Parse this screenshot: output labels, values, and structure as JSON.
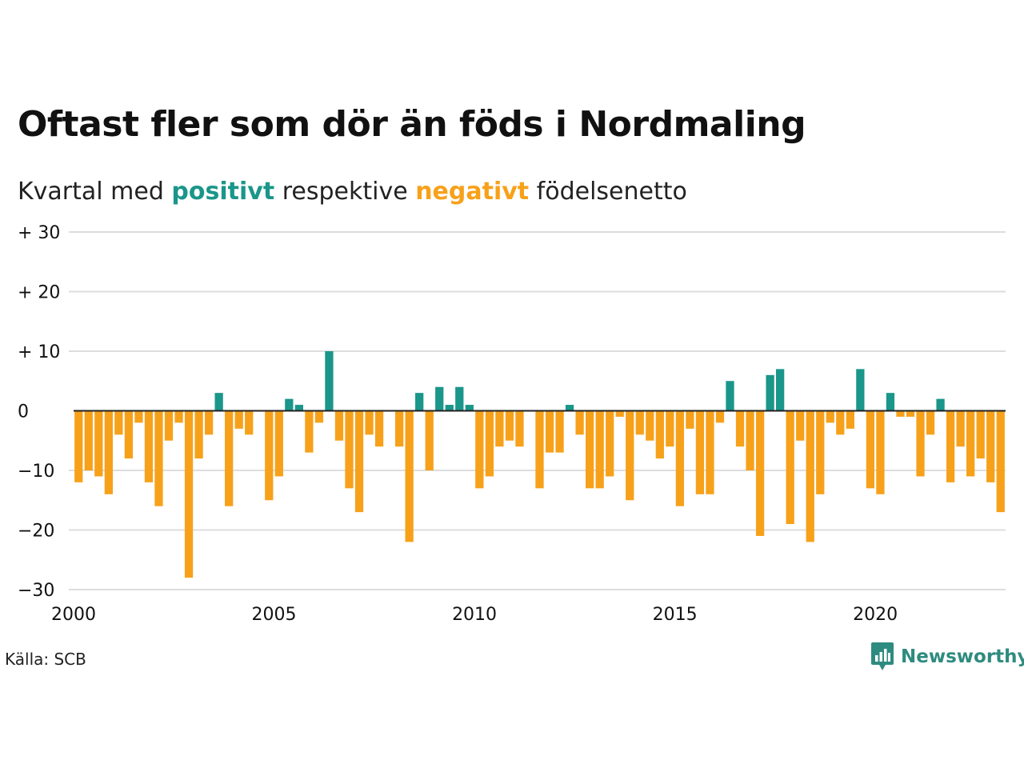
{
  "title": "Oftast fler som dör än föds i Nordmaling",
  "subtitle": {
    "prefix": "Kvartal med ",
    "positive_word": "positivt",
    "middle": " respektive ",
    "negative_word": "negativt",
    "suffix": " födelsenetto"
  },
  "colors": {
    "positive": "#1a968a",
    "negative": "#f7a11a",
    "grid": "#dddddd",
    "zero_line": "#222222"
  },
  "source": "Källa: SCB",
  "brand": {
    "name": "Newsworthy",
    "icon": "bar-chart-speech-bubble-icon"
  },
  "chart_data": {
    "type": "bar",
    "x_start": 2000,
    "x_step": 0.25,
    "xlim": [
      2000,
      2023.25
    ],
    "ylim": [
      -30,
      30
    ],
    "y_ticks": [
      30,
      20,
      10,
      0,
      -10,
      -20,
      -30
    ],
    "y_tick_labels": [
      "+ 30",
      "+ 20",
      "+ 10",
      "0",
      "−10",
      "−20",
      "−30"
    ],
    "x_ticks": [
      2000,
      2005,
      2010,
      2015,
      2020
    ],
    "x_tick_labels": [
      "2000",
      "2005",
      "2010",
      "2015",
      "2020"
    ],
    "values": [
      -12,
      -10,
      -11,
      -14,
      -4,
      -8,
      -2,
      -12,
      -16,
      -5,
      -2,
      -28,
      -8,
      -4,
      3,
      -16,
      -3,
      -4,
      0,
      -15,
      -11,
      2,
      1,
      -7,
      -2,
      10,
      -5,
      -13,
      -17,
      -4,
      -6,
      0,
      -6,
      -22,
      3,
      -10,
      4,
      1,
      4,
      1,
      -13,
      -11,
      -6,
      -5,
      -6,
      0,
      -13,
      -7,
      -7,
      1,
      -4,
      -13,
      -13,
      -11,
      -1,
      -15,
      -4,
      -5,
      -8,
      -6,
      -16,
      -3,
      -14,
      -14,
      -2,
      5,
      -6,
      -10,
      -21,
      6,
      7,
      -19,
      -5,
      -22,
      -14,
      -2,
      -4,
      -3,
      7,
      -13,
      -14,
      3,
      -1,
      -1,
      -11,
      -4,
      2,
      -12,
      -6,
      -11,
      -8,
      -12,
      -17
    ]
  }
}
